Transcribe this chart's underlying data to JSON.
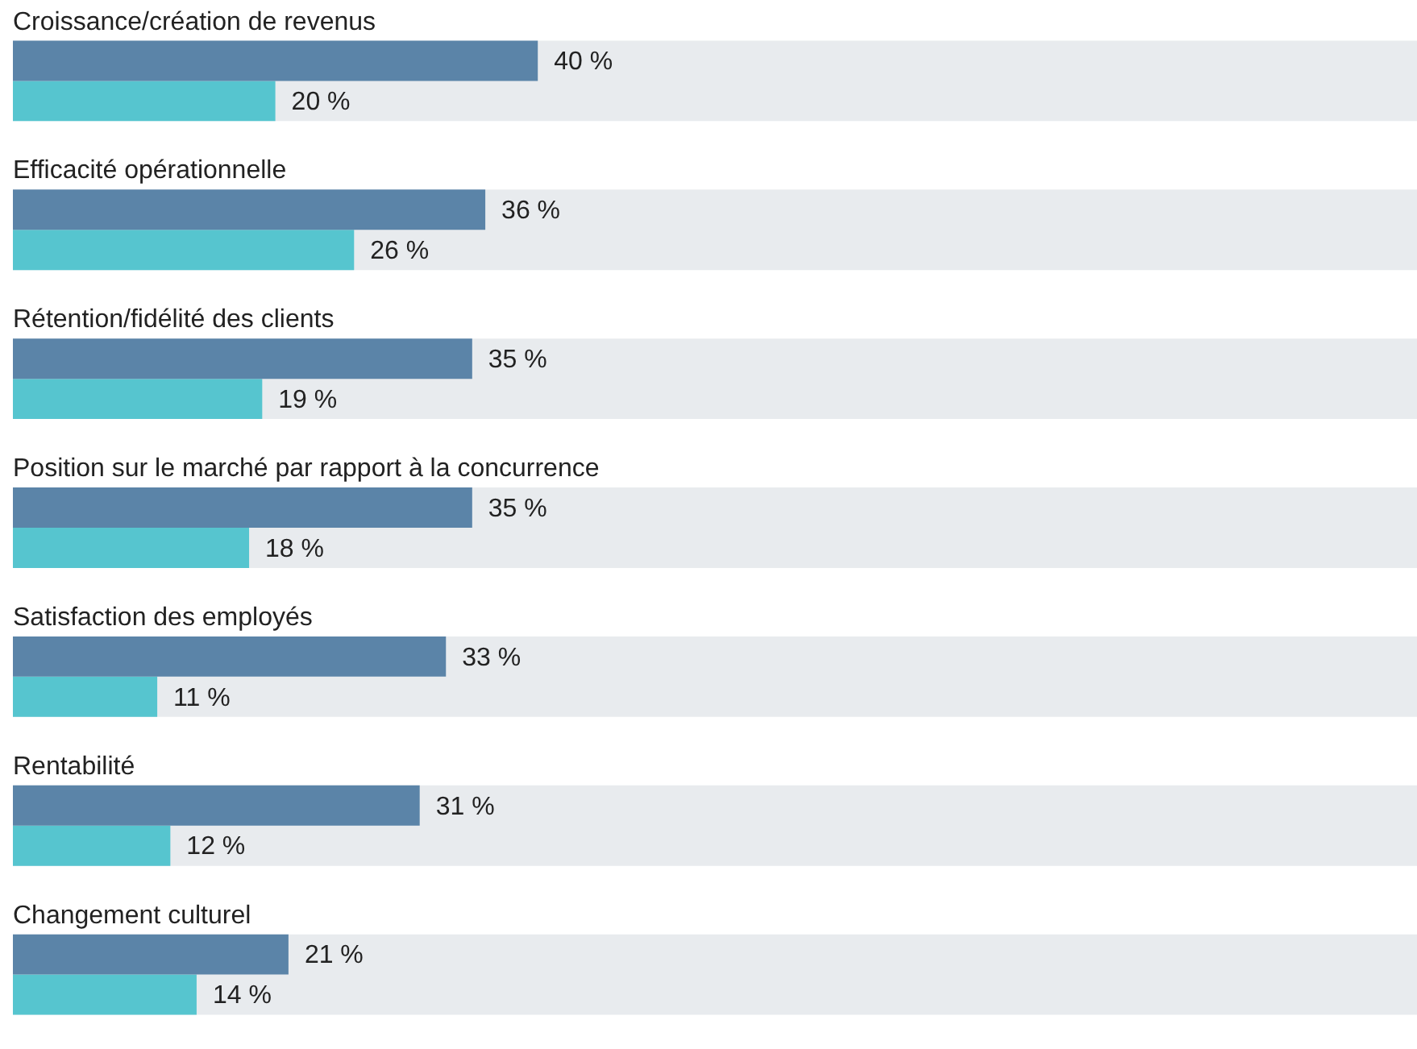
{
  "chart_data": {
    "type": "bar",
    "orientation": "horizontal",
    "categories": [
      "Croissance/création de revenus",
      "Efficacité opérationnelle",
      "Rétention/fidélité des clients",
      "Position sur le marché par rapport à la concurrence",
      "Satisfaction des employés",
      "Rentabilité",
      "Changement culturel"
    ],
    "xlim": [
      0,
      107
    ],
    "bands": [
      {
        "axis": "y",
        "from": "Croissance/création de revenus",
        "to": "Croissance/création de revenus",
        "color": "#e8ebee"
      },
      {
        "axis": "y",
        "from": "Efficacité opérationnelle",
        "to": "Efficacité opérationnelle",
        "color": "#e8ebee"
      },
      {
        "axis": "y",
        "from": "Rétention/fidélité des clients",
        "to": "Rétention/fidélité des clients",
        "color": "#e8ebee"
      },
      {
        "axis": "y",
        "from": "Position sur le marché par rapport à la concurrence",
        "to": "Position sur le marché par rapport à la concurrence",
        "color": "#e8ebee"
      },
      {
        "axis": "y",
        "from": "Satisfaction des employés",
        "to": "Satisfaction des employés",
        "color": "#e8ebee"
      },
      {
        "axis": "y",
        "from": "Rentabilité",
        "to": "Rentabilité",
        "color": "#e8ebee"
      },
      {
        "axis": "y",
        "from": "Changement culturel",
        "to": "Changement culturel",
        "color": "#e8ebee"
      }
    ],
    "series": [
      {
        "color": "#5b84a8",
        "values": [
          40,
          36,
          35,
          35,
          33,
          31,
          21
        ],
        "value_labels": [
          "40 %",
          "36 %",
          "35 %",
          "35 %",
          "33 %",
          "31 %",
          "21 %"
        ]
      },
      {
        "color": "#56c5cf",
        "values": [
          20,
          26,
          19,
          18,
          11,
          12,
          14
        ],
        "value_labels": [
          "20 %",
          "26 %",
          "19 %",
          "18 %",
          "11 %",
          "12 %",
          "14 %"
        ]
      }
    ]
  }
}
